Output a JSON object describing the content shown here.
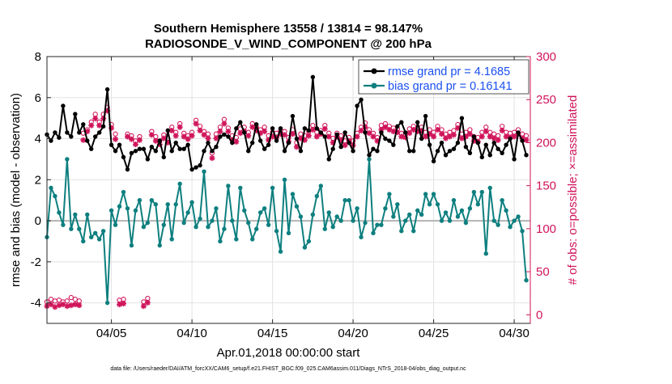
{
  "chart_data": {
    "type": "line",
    "title_line1": "Southern Hemisphere 13558 / 13814 = 98.147%",
    "title_line2": "RADIOSONDE_V_WIND_COMPONENT @ 200 hPa",
    "xlabel": "Apr.01,2018 00:00:00 start",
    "ylabel_left": "rmse and bias (model - observation)",
    "ylabel_right": "# of obs: o=possible; ×=assimilated",
    "footer": "data file: /Users/raeder/DAI/ATM_forcXX/CAM6_setup/f.e21.FHIST_BGC.f09_025.CAM6assim.011/Diags_NTrS_2018-04/obs_diag_output.nc",
    "xlim": [
      1.0,
      31.0
    ],
    "ylim_left": [
      -5,
      8
    ],
    "ylim_right": [
      -10,
      300
    ],
    "x_ticks": [
      5,
      10,
      15,
      20,
      25,
      30
    ],
    "x_tick_labels": [
      "04/05",
      "04/10",
      "04/15",
      "04/20",
      "04/25",
      "04/30"
    ],
    "y_ticks_left": [
      -4,
      -2,
      0,
      2,
      4,
      6,
      8
    ],
    "y_tick_labels_left": [
      "-4",
      "-2",
      "0",
      "2",
      "4",
      "6",
      "8"
    ],
    "y_ticks_right": [
      0,
      50,
      100,
      150,
      200,
      250,
      300
    ],
    "y_tick_labels_right": [
      "0",
      "50",
      "100",
      "150",
      "200",
      "250",
      "300"
    ],
    "zero_line": 0,
    "legend": {
      "position": "top-right",
      "entries": [
        "rmse grand pr = 4.1685",
        "bias grand pr = 0.16141"
      ]
    },
    "colors": {
      "rmse": "#000000",
      "bias": "#0e7f7f",
      "obs": "#d0145a",
      "legend_text": "#1a4ff0",
      "grid": "#e2e2e2",
      "zero": "#b3b3b3"
    },
    "x": [
      1.0,
      1.25,
      1.5,
      1.75,
      2.0,
      2.25,
      2.5,
      2.75,
      3.0,
      3.25,
      3.5,
      3.75,
      4.0,
      4.25,
      4.5,
      4.75,
      5.0,
      5.25,
      5.5,
      5.75,
      6.0,
      6.25,
      6.5,
      6.75,
      7.0,
      7.25,
      7.5,
      7.75,
      8.0,
      8.25,
      8.5,
      8.75,
      9.0,
      9.25,
      9.5,
      9.75,
      10.0,
      10.25,
      10.5,
      10.75,
      11.0,
      11.25,
      11.5,
      11.75,
      12.0,
      12.25,
      12.5,
      12.75,
      13.0,
      13.25,
      13.5,
      13.75,
      14.0,
      14.25,
      14.5,
      14.75,
      15.0,
      15.25,
      15.5,
      15.75,
      16.0,
      16.25,
      16.5,
      16.75,
      17.0,
      17.25,
      17.5,
      17.75,
      18.0,
      18.25,
      18.5,
      18.75,
      19.0,
      19.25,
      19.5,
      19.75,
      20.0,
      20.25,
      20.5,
      20.75,
      21.0,
      21.25,
      21.5,
      21.75,
      22.0,
      22.25,
      22.5,
      22.75,
      23.0,
      23.25,
      23.5,
      23.75,
      24.0,
      24.25,
      24.5,
      24.75,
      25.0,
      25.25,
      25.5,
      25.75,
      26.0,
      26.25,
      26.5,
      26.75,
      27.0,
      27.25,
      27.5,
      27.75,
      28.0,
      28.25,
      28.5,
      28.75,
      29.0,
      29.25,
      29.5,
      29.75,
      30.0,
      30.25,
      30.5,
      30.75
    ],
    "series": [
      {
        "name": "rmse",
        "values": [
          4.2,
          3.9,
          4.3,
          4.05,
          5.6,
          4.3,
          4.1,
          5.2,
          4.3,
          4.7,
          3.9,
          3.5,
          4.1,
          4.3,
          4.6,
          6.4,
          3.7,
          3.4,
          3.7,
          3.1,
          2.5,
          3.3,
          3.4,
          3.5,
          3.5,
          3.0,
          3.6,
          3.4,
          3.9,
          3.1,
          4.4,
          3.4,
          3.8,
          3.5,
          3.5,
          3.7,
          2.5,
          2.6,
          2.7,
          3.4,
          3.8,
          3.4,
          3.6,
          4.1,
          4.2,
          4.1,
          3.8,
          4.5,
          4.8,
          4.3,
          3.4,
          3.8,
          4.7,
          3.9,
          3.5,
          3.7,
          4.5,
          3.9,
          4.5,
          3.4,
          3.8,
          5.1,
          4.0,
          3.4,
          4.5,
          4.4,
          7.0,
          4.5,
          4.3,
          4.1,
          3.0,
          3.5,
          4.2,
          3.6,
          4.3,
          3.8,
          3.4,
          5.6,
          5.9,
          4.3,
          3.2,
          3.5,
          3.4,
          4.3,
          4.0,
          3.9,
          3.7,
          4.6,
          4.8,
          4.3,
          3.4,
          3.4,
          4.8,
          4.0,
          5.1,
          3.7,
          2.9,
          3.4,
          3.8,
          3.2,
          3.4,
          3.5,
          3.8,
          5.0,
          3.6,
          3.3,
          4.1,
          3.8,
          3.1,
          3.7,
          3.2,
          3.8,
          3.5,
          3.3,
          3.7,
          4.0,
          3.0,
          4.3,
          3.9,
          3.2
        ],
        "color": "#000000"
      },
      {
        "name": "bias",
        "values": [
          -0.8,
          1.6,
          1.2,
          0.4,
          -0.2,
          3.0,
          -0.4,
          0.3,
          -0.4,
          -1.0,
          0.3,
          -0.8,
          -0.6,
          -0.9,
          -0.5,
          -4.0,
          0.5,
          -0.2,
          0.7,
          1.4,
          0.6,
          -1.2,
          0.5,
          1.0,
          -0.3,
          -0.1,
          1.0,
          0.8,
          -1.2,
          -0.2,
          0.8,
          -0.9,
          0.8,
          1.8,
          -0.1,
          0.4,
          0.9,
          -0.3,
          0.1,
          2.4,
          -0.3,
          0.0,
          0.6,
          -1.0,
          -0.4,
          1.7,
          0.0,
          -0.9,
          1.6,
          0.5,
          -0.1,
          -0.9,
          -0.4,
          0.4,
          0.6,
          -0.2,
          1.6,
          -0.5,
          -1.5,
          2.0,
          -0.6,
          1.3,
          0.7,
          0.2,
          -1.3,
          -1.0,
          0.3,
          1.2,
          1.7,
          -0.4,
          0.4,
          -0.3,
          0.2,
          0.0,
          1.0,
          1.0,
          0.0,
          0.6,
          -0.8,
          -0.1,
          3.0,
          -0.6,
          -0.2,
          -0.2,
          0.6,
          1.3,
          0.2,
          0.8,
          -0.5,
          0.0,
          0.3,
          -0.5,
          0.5,
          0.3,
          1.3,
          0.8,
          1.3,
          0.8,
          0.0,
          0.4,
          0.0,
          1.0,
          0.2,
          0.5,
          -0.1,
          0.6,
          1.4,
          0.8,
          1.4,
          -1.6,
          1.6,
          0.0,
          -0.2,
          1.0,
          0.5,
          -0.3,
          0.0,
          0.2,
          -0.5,
          -2.9
        ],
        "color": "#0e7f7f"
      }
    ],
    "obs_possible": [
      15,
      18,
      16,
      17,
      15,
      16,
      20,
      18,
      16,
      211,
      215,
      224,
      233,
      224,
      233,
      241,
      221,
      210,
      17,
      18,
      210,
      208,
      202,
      207,
      15,
      19,
      213,
      207,
      202,
      209,
      205,
      218,
      212,
      222,
      211,
      208,
      212,
      226,
      219,
      213,
      210,
      188,
      210,
      218,
      227,
      217,
      208,
      206,
      216,
      218,
      212,
      222,
      218,
      215,
      218,
      208,
      212,
      211,
      214,
      213,
      206,
      215,
      200,
      210,
      208,
      213,
      220,
      212,
      214,
      220,
      211,
      205,
      211,
      208,
      202,
      206,
      202,
      211,
      218,
      223,
      215,
      211,
      206,
      220,
      222,
      219,
      217,
      216,
      211,
      210,
      216,
      219,
      217,
      218,
      212,
      215,
      212,
      219,
      215,
      210,
      212,
      214,
      221,
      210,
      212,
      215,
      207,
      206,
      212,
      218,
      212,
      210,
      208,
      219,
      212,
      211,
      212,
      215,
      210,
      208
    ],
    "obs_assimilated": [
      10,
      12,
      9,
      11,
      12,
      10,
      11,
      12,
      11,
      203,
      213,
      220,
      228,
      220,
      228,
      237,
      217,
      204,
      12,
      13,
      207,
      204,
      198,
      203,
      10,
      14,
      209,
      202,
      198,
      205,
      200,
      214,
      208,
      218,
      207,
      204,
      208,
      222,
      214,
      209,
      205,
      182,
      205,
      213,
      222,
      213,
      203,
      201,
      211,
      213,
      208,
      218,
      214,
      211,
      213,
      203,
      207,
      206,
      210,
      209,
      201,
      210,
      195,
      205,
      203,
      208,
      215,
      207,
      210,
      216,
      207,
      200,
      207,
      203,
      197,
      202,
      197,
      207,
      214,
      218,
      211,
      207,
      202,
      215,
      218,
      215,
      213,
      212,
      207,
      206,
      211,
      215,
      213,
      214,
      207,
      210,
      207,
      215,
      210,
      205,
      207,
      209,
      217,
      205,
      207,
      210,
      202,
      201,
      207,
      213,
      207,
      205,
      203,
      214,
      207,
      206,
      207,
      210,
      205,
      203
    ]
  }
}
